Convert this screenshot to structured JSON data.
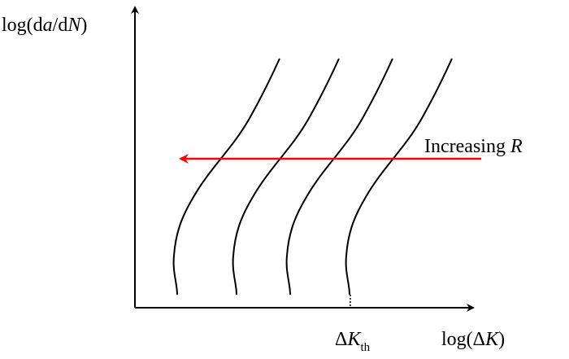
{
  "chart_data": {
    "type": "line",
    "title": "",
    "axes": {
      "y_label": {
        "prefix": "log(d",
        "a": "a",
        "mid": "/d",
        "N": "N",
        "suffix": ")"
      },
      "x_label": {
        "prefix": "log(Δ",
        "K": "K",
        "suffix": ")"
      },
      "x_scale": "log",
      "y_scale": "log",
      "ticks_shown": false
    },
    "marker": {
      "delta": "Δ",
      "K": "K",
      "subscript": "th"
    },
    "annotation": {
      "word": "Increasing ",
      "R": "R",
      "arrow_color": "#ff0000",
      "direction": "leftward"
    },
    "series": [
      {
        "curve": 1
      },
      {
        "curve": 2
      },
      {
        "curve": 3
      },
      {
        "curve": 4
      }
    ],
    "colors": {
      "curves": "#000000",
      "axes": "#000000",
      "arrow": "#ff0000"
    }
  }
}
